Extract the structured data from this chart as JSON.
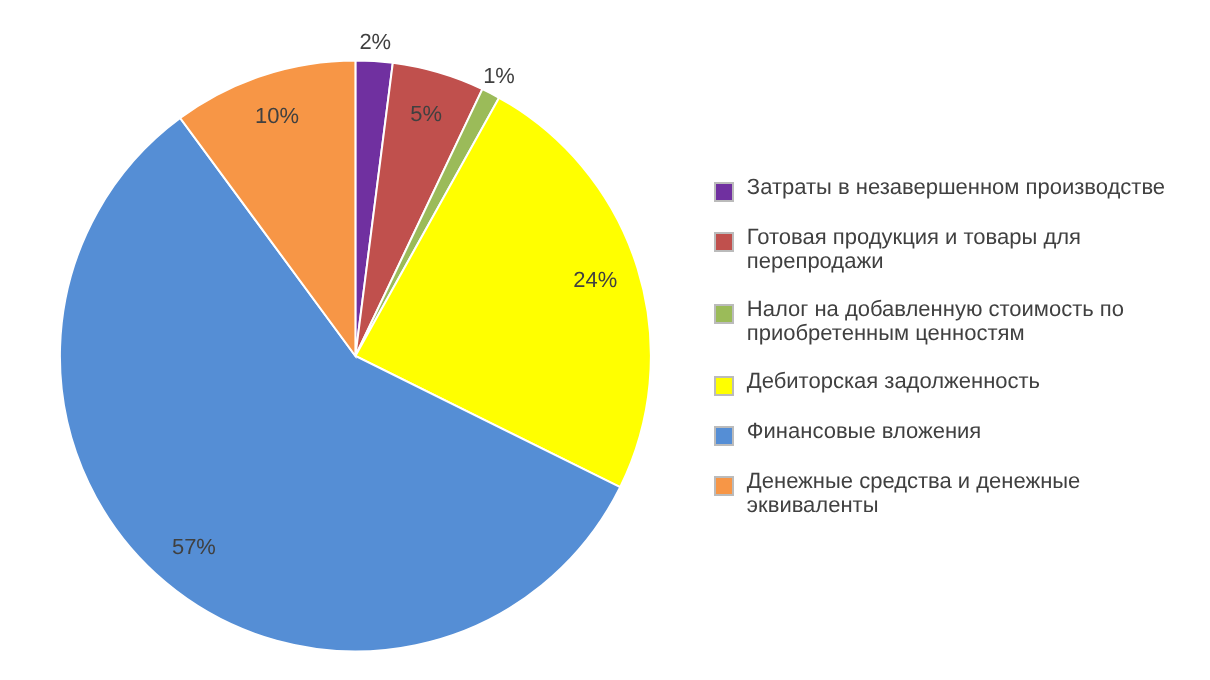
{
  "chart_data": {
    "type": "pie",
    "categories": [
      "Затраты в незавершенном производстве",
      "Готовая продукция и товары для перепродажи",
      "Налог на добавленную стоимость по приобретенным ценностям",
      "Дебиторская задолженность",
      "Финансовые вложения",
      "Денежные средства и денежные эквиваленты"
    ],
    "values": [
      2,
      5,
      1,
      24,
      57,
      10
    ],
    "value_labels": [
      "2%",
      "5%",
      "1%",
      "24%",
      "57%",
      "10%"
    ],
    "colors": [
      "#7030a0",
      "#c0504d",
      "#9bbb59",
      "#ffff00",
      "#558ed5",
      "#f79646"
    ],
    "legend": "right"
  }
}
